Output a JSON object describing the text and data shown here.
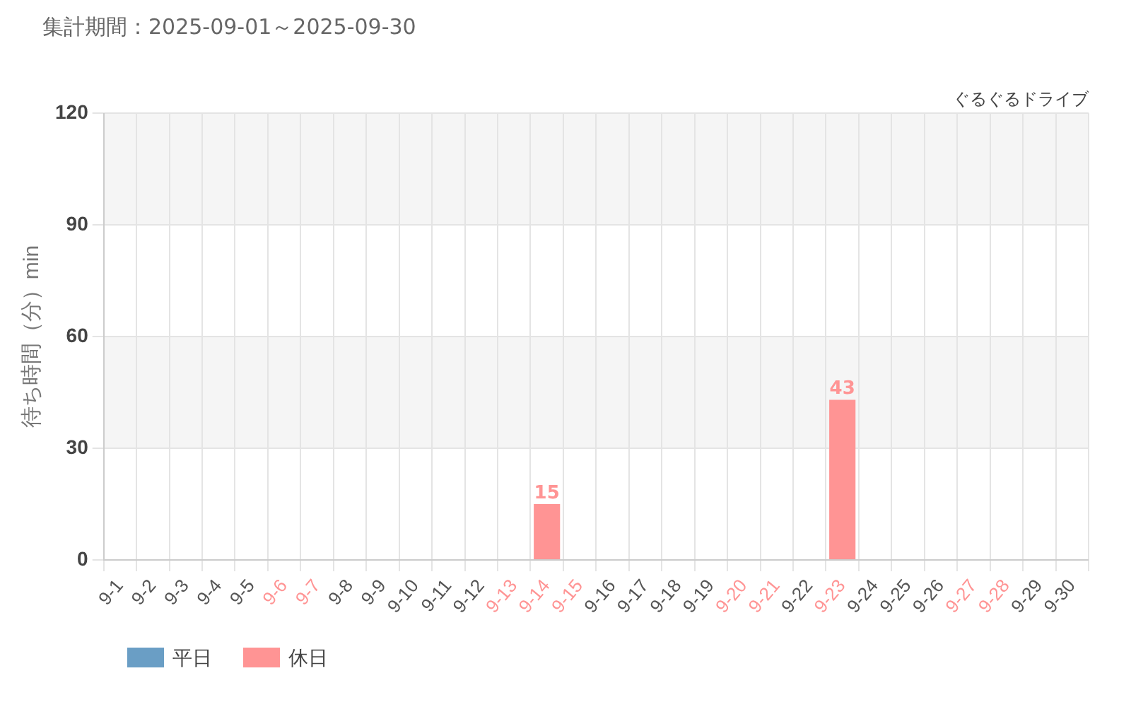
{
  "chart_data": {
    "type": "bar",
    "title": "集計期間：2025-09-01～2025-09-30",
    "ylabel": "待ち時間（分）min",
    "annotations": [
      "ぐるぐるドライブ"
    ],
    "categories": [
      "9-1",
      "9-2",
      "9-3",
      "9-4",
      "9-5",
      "9-6",
      "9-7",
      "9-8",
      "9-9",
      "9-10",
      "9-11",
      "9-12",
      "9-13",
      "9-14",
      "9-15",
      "9-16",
      "9-17",
      "9-18",
      "9-19",
      "9-20",
      "9-21",
      "9-22",
      "9-23",
      "9-24",
      "9-25",
      "9-26",
      "9-27",
      "9-28",
      "9-29",
      "9-30"
    ],
    "series": [
      {
        "name": "平日",
        "color": "#6a9ec5",
        "values": [
          0,
          0,
          0,
          0,
          0,
          null,
          null,
          0,
          0,
          0,
          0,
          0,
          null,
          null,
          null,
          0,
          0,
          0,
          0,
          null,
          null,
          0,
          null,
          0,
          0,
          0,
          null,
          null,
          0,
          0
        ]
      },
      {
        "name": "休日",
        "color": "#ff9494",
        "values": [
          null,
          null,
          null,
          null,
          null,
          0,
          0,
          null,
          null,
          null,
          null,
          null,
          0,
          15,
          0,
          null,
          null,
          null,
          null,
          0,
          0,
          null,
          43,
          null,
          null,
          null,
          0,
          0,
          null,
          null
        ],
        "value_labels": [
          null,
          null,
          null,
          null,
          null,
          null,
          null,
          null,
          null,
          null,
          null,
          null,
          null,
          "15",
          null,
          null,
          null,
          null,
          null,
          null,
          null,
          null,
          "43",
          null,
          null,
          null,
          null,
          null,
          null,
          null
        ]
      }
    ],
    "ylim": [
      0,
      120
    ],
    "yticks": [
      0,
      30,
      60,
      90,
      120
    ],
    "grid": true,
    "legend": "bottom left"
  }
}
